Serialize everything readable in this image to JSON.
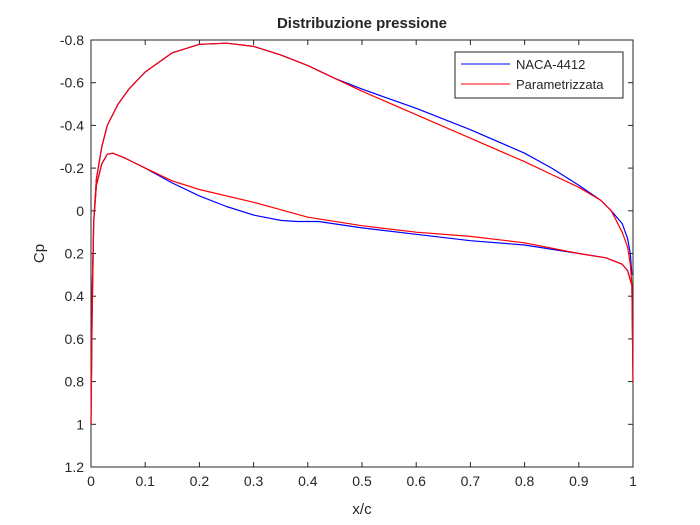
{
  "chart_data": {
    "type": "line",
    "title": "Distribuzione pressione",
    "xlabel": "x/c",
    "ylabel": "Cp",
    "xlim": [
      0,
      1
    ],
    "ylim": [
      -0.8,
      1.2
    ],
    "y_reversed": true,
    "grid": false,
    "legend_position": "top-right",
    "x_ticks": [
      0,
      0.1,
      0.2,
      0.3,
      0.4,
      0.5,
      0.6,
      0.7,
      0.8,
      0.9,
      1
    ],
    "x_tick_labels": [
      "0",
      "0.1",
      "0.2",
      "0.3",
      "0.4",
      "0.5",
      "0.6",
      "0.7",
      "0.8",
      "0.9",
      "1"
    ],
    "y_ticks": [
      -0.8,
      -0.6,
      -0.4,
      -0.2,
      0,
      0.2,
      0.4,
      0.6,
      0.8,
      1,
      1.2
    ],
    "y_tick_labels": [
      "-0.8",
      "-0.6",
      "-0.4",
      "-0.2",
      "0",
      "0.2",
      "0.4",
      "0.6",
      "0.8",
      "1",
      "1.2"
    ],
    "series": [
      {
        "name": "NACA-4412",
        "color": "#0000ff",
        "x": [
          0.998,
          0.995,
          0.99,
          0.98,
          0.96,
          0.94,
          0.9,
          0.85,
          0.8,
          0.7,
          0.6,
          0.5,
          0.45,
          0.4,
          0.35,
          0.3,
          0.25,
          0.2,
          0.15,
          0.1,
          0.07,
          0.05,
          0.03,
          0.02,
          0.01,
          0.005,
          0.002,
          0.0,
          0.002,
          0.005,
          0.01,
          0.02,
          0.03,
          0.04,
          0.06,
          0.1,
          0.15,
          0.2,
          0.25,
          0.3,
          0.35,
          0.38,
          0.42,
          0.5,
          0.6,
          0.7,
          0.8,
          0.9,
          0.95,
          0.98,
          0.99,
          0.998,
          1.0
        ],
        "y": [
          0.3,
          0.2,
          0.13,
          0.06,
          0.0,
          -0.05,
          -0.12,
          -0.2,
          -0.27,
          -0.38,
          -0.48,
          -0.57,
          -0.62,
          -0.68,
          -0.73,
          -0.77,
          -0.785,
          -0.78,
          -0.74,
          -0.65,
          -0.57,
          -0.5,
          -0.4,
          -0.3,
          -0.15,
          0.05,
          0.4,
          1.0,
          0.5,
          0.05,
          -0.12,
          -0.22,
          -0.265,
          -0.27,
          -0.25,
          -0.2,
          -0.13,
          -0.07,
          -0.02,
          0.02,
          0.045,
          0.05,
          0.05,
          0.08,
          0.11,
          0.14,
          0.16,
          0.2,
          0.22,
          0.25,
          0.28,
          0.35,
          0.8
        ]
      },
      {
        "name": "Parametrizzata",
        "color": "#ff0000",
        "x": [
          1.0,
          0.998,
          0.995,
          0.99,
          0.98,
          0.96,
          0.94,
          0.92,
          0.9,
          0.85,
          0.8,
          0.7,
          0.6,
          0.5,
          0.45,
          0.4,
          0.35,
          0.3,
          0.25,
          0.2,
          0.15,
          0.1,
          0.07,
          0.05,
          0.03,
          0.02,
          0.01,
          0.005,
          0.002,
          0.0,
          0.002,
          0.005,
          0.01,
          0.02,
          0.03,
          0.04,
          0.06,
          0.1,
          0.15,
          0.2,
          0.3,
          0.4,
          0.5,
          0.6,
          0.7,
          0.8,
          0.9,
          0.95,
          0.98,
          0.99,
          0.998,
          1.0
        ],
        "y": [
          0.8,
          0.35,
          0.25,
          0.17,
          0.1,
          0.0,
          -0.05,
          -0.08,
          -0.11,
          -0.17,
          -0.23,
          -0.34,
          -0.45,
          -0.56,
          -0.62,
          -0.68,
          -0.73,
          -0.77,
          -0.785,
          -0.78,
          -0.74,
          -0.65,
          -0.57,
          -0.5,
          -0.4,
          -0.3,
          -0.15,
          0.05,
          0.4,
          1.0,
          0.5,
          0.05,
          -0.12,
          -0.22,
          -0.265,
          -0.27,
          -0.25,
          -0.2,
          -0.14,
          -0.1,
          -0.04,
          0.03,
          0.07,
          0.1,
          0.12,
          0.15,
          0.2,
          0.22,
          0.25,
          0.28,
          0.35,
          0.8
        ]
      }
    ]
  }
}
